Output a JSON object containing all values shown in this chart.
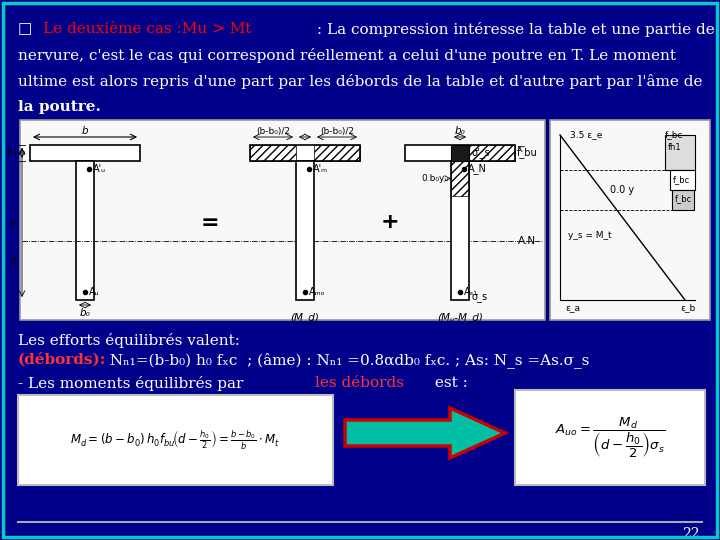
{
  "bg_color": "#00008B",
  "border_color": "#00CCCC",
  "text_color": "#FFFFFF",
  "red_color": "#FF0000",
  "black": "#000000",
  "page_number": "22",
  "fs_main": 11,
  "fs_diagram": 7.5,
  "diag_bg": "#F8F8F8",
  "line1_parts": [
    [
      "□ ",
      "#FFFFFF"
    ],
    [
      "Le deuxième cas :Mu > Mt",
      "#FF0000"
    ],
    [
      " : La compression intéresse la table et une partie de la",
      "#FFFFFF"
    ]
  ],
  "line2": "nervure, c'est le cas qui correspond réellement a celui d'une poutre en T. Le moment",
  "line3": "ultime est alors repris d'une part par les débords de la table et d'autre part par l'âme de",
  "line4": "la poutre.",
  "efforts_line": "Les efforts équilibrés valent:",
  "debords_bold": "(débords):",
  "debords_rest": " Nₙ₁=(b-b₀) h₀ fₓc  ; (âme) : Nₙ₁ =0.8αdb₀ fₓc. ; As: N_s =As.σ_s",
  "moments_pre": "- Les moments équilibrés par ",
  "moments_red": "les débords",
  "moments_post": " est :"
}
